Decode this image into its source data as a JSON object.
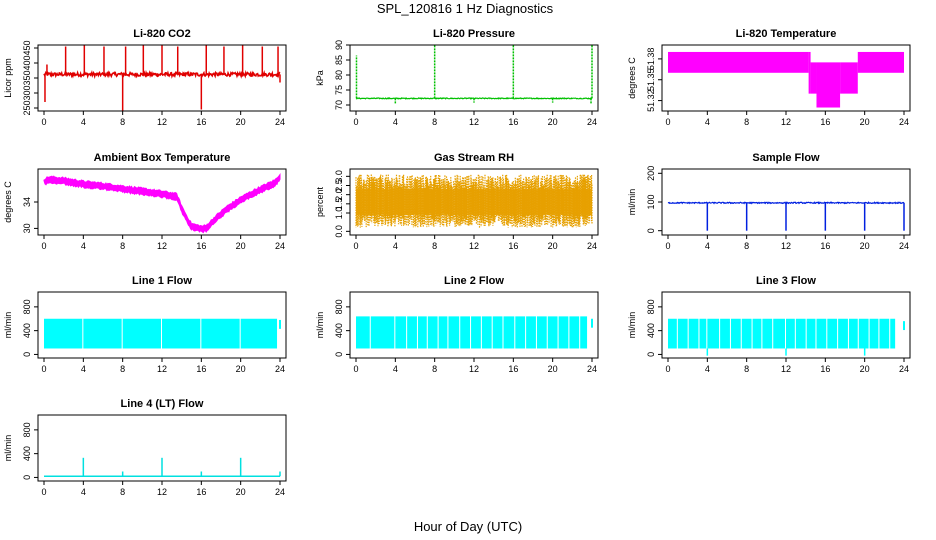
{
  "title": "SPL_120816  1 Hz Diagnostics",
  "xlabel": "Hour of Day (UTC)",
  "chart_data": [
    {
      "name": "co2",
      "type": "line",
      "title": "Li-820 CO2",
      "ylabel": "Licor ppm",
      "color": "#e00000",
      "xlim": [
        0,
        24
      ],
      "ylim": [
        240,
        460
      ],
      "xticks": [
        0,
        4,
        8,
        12,
        16,
        20,
        24
      ],
      "yticks": [
        250,
        300,
        350,
        400,
        450
      ],
      "ytick_labels": [
        "250",
        "300",
        "350",
        "400",
        "450"
      ],
      "baseline": 362,
      "noise": 6,
      "spikes_up": [
        [
          0.3,
          395
        ],
        [
          2.2,
          455
        ],
        [
          4.1,
          460
        ],
        [
          6.1,
          455
        ],
        [
          8.3,
          455
        ],
        [
          10.1,
          460
        ],
        [
          12.0,
          460
        ],
        [
          13.6,
          455
        ],
        [
          16.5,
          460
        ],
        [
          18.3,
          455
        ],
        [
          20.2,
          460
        ],
        [
          22.2,
          455
        ],
        [
          23.8,
          455
        ]
      ],
      "spikes_down": [
        [
          0.1,
          270
        ],
        [
          8.0,
          240
        ],
        [
          16.0,
          245
        ],
        [
          24.0,
          335
        ]
      ]
    },
    {
      "name": "pressure",
      "type": "line",
      "title": "Li-820 Pressure",
      "ylabel": "kPa",
      "color": "#00c000",
      "xlim": [
        0,
        24
      ],
      "ylim": [
        68,
        90
      ],
      "xticks": [
        0,
        4,
        8,
        12,
        16,
        20,
        24
      ],
      "yticks": [
        70,
        75,
        80,
        85,
        90
      ],
      "ytick_labels": [
        "70",
        "75",
        "80",
        "85",
        "90"
      ],
      "baseline": 72.2,
      "noise": 0.15,
      "spikes_up": [
        [
          0.05,
          86.5
        ],
        [
          8.0,
          90
        ],
        [
          16.0,
          90
        ],
        [
          24.0,
          90
        ]
      ],
      "spikes_down": [
        [
          4.0,
          70.5
        ],
        [
          12.0,
          70.8
        ],
        [
          20.0,
          70.8
        ],
        [
          23.9,
          70.2
        ]
      ]
    },
    {
      "name": "licor_temp",
      "type": "area",
      "title": "Li-820 Temperature",
      "ylabel": "degrees C",
      "color": "#ff00ff",
      "xlim": [
        0,
        24
      ],
      "ylim": [
        51.305,
        51.4
      ],
      "xticks": [
        0,
        4,
        8,
        12,
        16,
        20,
        24
      ],
      "yticks": [
        51.32,
        51.35,
        51.38
      ],
      "ytick_labels": [
        "51.32",
        "51.35",
        "51.38"
      ],
      "bands": [
        [
          0,
          14.3,
          51.36,
          51.39
        ],
        [
          14.3,
          14.5,
          51.33,
          51.39
        ],
        [
          14.5,
          15.1,
          51.33,
          51.375
        ],
        [
          15.1,
          17.5,
          51.31,
          51.375
        ],
        [
          17.5,
          19.3,
          51.33,
          51.375
        ],
        [
          19.3,
          24,
          51.36,
          51.39
        ]
      ]
    },
    {
      "name": "box_temp",
      "type": "line",
      "title": "Ambient Box Temperature",
      "ylabel": "degrees C",
      "color": "#ff00ff",
      "xlim": [
        0,
        24
      ],
      "ylim": [
        29,
        39
      ],
      "xticks": [
        0,
        4,
        8,
        12,
        16,
        20,
        24
      ],
      "yticks": [
        30,
        34
      ],
      "ytick_labels": [
        "30",
        "34"
      ],
      "points": [
        [
          0,
          37
        ],
        [
          0.5,
          37.4
        ],
        [
          2,
          37.2
        ],
        [
          4,
          36.7
        ],
        [
          6,
          36.4
        ],
        [
          8,
          36
        ],
        [
          10,
          35.6
        ],
        [
          12,
          35.2
        ],
        [
          13.5,
          34.8
        ],
        [
          14,
          33
        ],
        [
          14.5,
          31.5
        ],
        [
          15,
          30.3
        ],
        [
          16,
          29.9
        ],
        [
          16.5,
          30
        ],
        [
          17.5,
          31.5
        ],
        [
          18.5,
          32.8
        ],
        [
          20,
          34.3
        ],
        [
          21.5,
          35.5
        ],
        [
          22.5,
          36.2
        ],
        [
          23.5,
          36.9
        ],
        [
          24,
          37.8
        ]
      ],
      "band": 0.9
    },
    {
      "name": "rh",
      "type": "line",
      "title": "Gas Stream RH",
      "ylabel": "percent",
      "color": "#e6a000",
      "xlim": [
        0,
        24
      ],
      "ylim": [
        -0.2,
        3.4
      ],
      "xticks": [
        0,
        4,
        8,
        12,
        16,
        20,
        24
      ],
      "yticks": [
        0.0,
        1.0,
        1.5,
        2.0,
        2.5,
        3.0
      ],
      "ytick_labels": [
        "0.0",
        "1.0",
        "1.5",
        "2.0",
        "2.5",
        "3.0"
      ],
      "center": 1.6,
      "min": 0.2,
      "max": 3.1
    },
    {
      "name": "sample_flow",
      "type": "line",
      "title": "Sample Flow",
      "ylabel": "ml/min",
      "color": "#0020e0",
      "xlim": [
        0,
        24
      ],
      "ylim": [
        -15,
        215
      ],
      "xticks": [
        0,
        4,
        8,
        12,
        16,
        20,
        24
      ],
      "yticks": [
        0,
        100,
        200
      ],
      "ytick_labels": [
        "0",
        "100",
        "200"
      ],
      "baseline": 97,
      "noise": 2,
      "spikes_down": [
        [
          4.0,
          0
        ],
        [
          8.0,
          0
        ],
        [
          12.0,
          0
        ],
        [
          16.0,
          0
        ],
        [
          20.0,
          0
        ],
        [
          24.0,
          0
        ]
      ]
    },
    {
      "name": "line1",
      "type": "area",
      "title": "Line 1 Flow",
      "ylabel": "ml/min",
      "color": "#00ffff",
      "xlim": [
        0,
        24
      ],
      "ylim": [
        -60,
        1050
      ],
      "xticks": [
        0,
        4,
        8,
        12,
        16,
        20,
        24
      ],
      "yticks": [
        0,
        400,
        800
      ],
      "ytick_labels": [
        "0",
        "400",
        "800"
      ],
      "low": 100,
      "high": 600,
      "gaps": [
        4.0,
        8.0,
        12.0,
        16.0,
        20.0
      ],
      "end": [
        23.8,
        580
      ]
    },
    {
      "name": "line2",
      "type": "area",
      "title": "Line 2 Flow",
      "ylabel": "ml/min",
      "color": "#00ffff",
      "xlim": [
        0,
        24
      ],
      "ylim": [
        -60,
        1050
      ],
      "xticks": [
        0,
        4,
        8,
        12,
        16,
        20,
        24
      ],
      "yticks": [
        0,
        400,
        800
      ],
      "ytick_labels": [
        "0",
        "400",
        "800"
      ],
      "low": 100,
      "high": 640,
      "gaps": [
        1.5,
        4.0,
        5.2,
        6.3,
        7.3,
        8.4,
        9.4,
        10.6,
        11.7,
        12.8,
        13.9,
        15.0,
        16.2,
        17.3,
        18.4,
        19.5,
        20.6,
        21.7,
        22.8
      ],
      "end": [
        23.6,
        600
      ]
    },
    {
      "name": "line3",
      "type": "area",
      "title": "Line 3 Flow",
      "ylabel": "ml/min",
      "color": "#00ffff",
      "xlim": [
        0,
        24
      ],
      "ylim": [
        -60,
        1050
      ],
      "xticks": [
        0,
        4,
        8,
        12,
        16,
        20,
        24
      ],
      "yticks": [
        0,
        400,
        800
      ],
      "ytick_labels": [
        "0",
        "400",
        "800"
      ],
      "low": 100,
      "high": 600,
      "gaps": [
        1.0,
        2.1,
        3.2,
        4.0,
        5.3,
        6.4,
        7.5,
        8.6,
        9.6,
        10.7,
        12.0,
        13.0,
        14.1,
        15.1,
        16.2,
        17.3,
        18.4,
        19.4,
        20.5,
        21.5,
        22.6
      ],
      "dips": [
        4.0,
        12.0,
        20.0
      ],
      "end": [
        23.2,
        560
      ]
    },
    {
      "name": "line4",
      "type": "line",
      "title": "Line 4 (LT) Flow",
      "ylabel": "ml/min",
      "color": "#00e0e0",
      "xlim": [
        0,
        24
      ],
      "ylim": [
        -60,
        1050
      ],
      "xticks": [
        0,
        4,
        8,
        12,
        16,
        20,
        24
      ],
      "yticks": [
        0,
        400,
        800
      ],
      "ytick_labels": [
        "0",
        "400",
        "800"
      ],
      "baseline": 20,
      "spikes_up": [
        [
          4.0,
          330
        ],
        [
          8.0,
          100
        ],
        [
          12.0,
          330
        ],
        [
          16.0,
          100
        ],
        [
          20.0,
          330
        ],
        [
          24.0,
          100
        ]
      ]
    }
  ]
}
